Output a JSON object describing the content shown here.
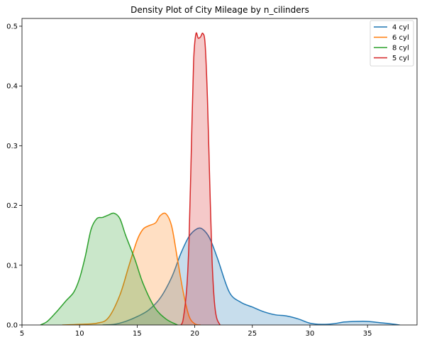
{
  "chart_data": {
    "type": "area",
    "title": "Density Plot of City Mileage by n_cilinders",
    "xlabel": "",
    "ylabel": "",
    "xlim": [
      5,
      39.3
    ],
    "ylim": [
      0,
      0.513
    ],
    "x_ticks": [
      5,
      10,
      15,
      20,
      25,
      30,
      35
    ],
    "y_ticks": [
      0.0,
      0.1,
      0.2,
      0.3,
      0.4,
      0.5
    ],
    "x_tick_labels": [
      "5",
      "10",
      "15",
      "20",
      "25",
      "30",
      "35"
    ],
    "y_tick_labels": [
      "0.0",
      "0.1",
      "0.2",
      "0.3",
      "0.4",
      "0.5"
    ],
    "grid": false,
    "legend_position": "top-right",
    "series": [
      {
        "name": "4 cyl",
        "color": "#1f77b4",
        "points": [
          [
            12.0,
            0.0
          ],
          [
            13.0,
            0.001
          ],
          [
            14.0,
            0.006
          ],
          [
            15.0,
            0.014
          ],
          [
            16.0,
            0.025
          ],
          [
            17.0,
            0.045
          ],
          [
            18.0,
            0.08
          ],
          [
            18.8,
            0.12
          ],
          [
            19.5,
            0.148
          ],
          [
            20.2,
            0.161
          ],
          [
            20.7,
            0.16
          ],
          [
            21.3,
            0.145
          ],
          [
            22.0,
            0.11
          ],
          [
            23.0,
            0.055
          ],
          [
            24.0,
            0.038
          ],
          [
            25.0,
            0.03
          ],
          [
            26.0,
            0.022
          ],
          [
            27.0,
            0.017
          ],
          [
            28.0,
            0.015
          ],
          [
            29.0,
            0.01
          ],
          [
            30.0,
            0.003
          ],
          [
            31.0,
            0.001
          ],
          [
            32.0,
            0.002
          ],
          [
            33.0,
            0.005
          ],
          [
            34.0,
            0.006
          ],
          [
            35.0,
            0.006
          ],
          [
            36.0,
            0.004
          ],
          [
            37.0,
            0.002
          ],
          [
            37.8,
            0.0
          ]
        ]
      },
      {
        "name": "6 cyl",
        "color": "#ff7f0e",
        "points": [
          [
            8.5,
            0.0
          ],
          [
            10.0,
            0.001
          ],
          [
            11.5,
            0.003
          ],
          [
            12.5,
            0.012
          ],
          [
            13.5,
            0.05
          ],
          [
            14.3,
            0.1
          ],
          [
            15.0,
            0.142
          ],
          [
            15.5,
            0.16
          ],
          [
            16.0,
            0.166
          ],
          [
            16.6,
            0.171
          ],
          [
            17.0,
            0.183
          ],
          [
            17.5,
            0.186
          ],
          [
            18.0,
            0.165
          ],
          [
            18.5,
            0.11
          ],
          [
            19.0,
            0.055
          ],
          [
            19.5,
            0.015
          ],
          [
            20.0,
            0.002
          ],
          [
            20.5,
            0.0
          ]
        ]
      },
      {
        "name": "8 cyl",
        "color": "#2ca02c",
        "points": [
          [
            6.6,
            0.0
          ],
          [
            7.2,
            0.006
          ],
          [
            8.0,
            0.022
          ],
          [
            8.8,
            0.04
          ],
          [
            9.5,
            0.055
          ],
          [
            10.0,
            0.078
          ],
          [
            10.5,
            0.115
          ],
          [
            11.0,
            0.16
          ],
          [
            11.5,
            0.178
          ],
          [
            12.0,
            0.18
          ],
          [
            12.5,
            0.184
          ],
          [
            13.0,
            0.187
          ],
          [
            13.5,
            0.178
          ],
          [
            14.0,
            0.15
          ],
          [
            14.8,
            0.11
          ],
          [
            15.5,
            0.07
          ],
          [
            16.5,
            0.03
          ],
          [
            17.5,
            0.01
          ],
          [
            18.5,
            0.0
          ]
        ]
      },
      {
        "name": "5 cyl",
        "color": "#d62728",
        "points": [
          [
            18.8,
            0.0
          ],
          [
            19.0,
            0.01
          ],
          [
            19.3,
            0.06
          ],
          [
            19.5,
            0.14
          ],
          [
            19.7,
            0.29
          ],
          [
            19.9,
            0.44
          ],
          [
            20.1,
            0.487
          ],
          [
            20.3,
            0.48
          ],
          [
            20.5,
            0.482
          ],
          [
            20.7,
            0.488
          ],
          [
            20.9,
            0.47
          ],
          [
            21.1,
            0.38
          ],
          [
            21.3,
            0.24
          ],
          [
            21.5,
            0.11
          ],
          [
            21.7,
            0.04
          ],
          [
            21.9,
            0.012
          ],
          [
            22.2,
            0.0
          ]
        ]
      }
    ],
    "draw_order": [
      "4 cyl",
      "6 cyl",
      "8 cyl",
      "5 cyl"
    ]
  }
}
